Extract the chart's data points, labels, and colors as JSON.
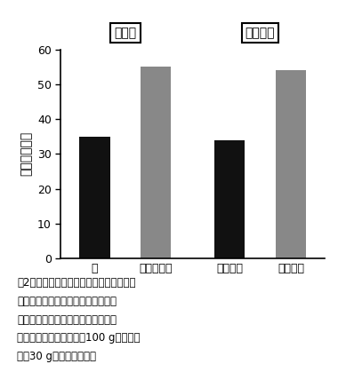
{
  "categories": [
    "稈",
    "葉鷢・葉身",
    "高比重部",
    "低比重部"
  ],
  "values": [
    35.0,
    55.0,
    34.0,
    54.0
  ],
  "bar_colors": [
    "#111111",
    "#888888",
    "#111111",
    "#888888"
  ],
  "ylabel": "乾重比（％）",
  "ylim": [
    0,
    60
  ],
  "yticks": [
    0,
    10,
    20,
    30,
    40,
    50,
    60
  ],
  "label_te_bunri": "手分離",
  "label_kikai_bunri": "機械分離",
  "background_color": "#ffffff",
  "bar_width": 0.5,
  "x_positions": [
    1.0,
    2.0,
    3.2,
    4.2
  ],
  "xlim": [
    0.45,
    4.75
  ],
  "caption_line1": "図2　稲わらの手作業分離（左）による稈",
  "caption_line2": "および葉鷢・葉身の乾重比と機械分",
  "caption_line3": "離（右）による高比重部および低比",
  "caption_line4": "重部の乾重比（手分離：100 g、機械分",
  "caption_line5": "離：30 gを用いた結果）"
}
